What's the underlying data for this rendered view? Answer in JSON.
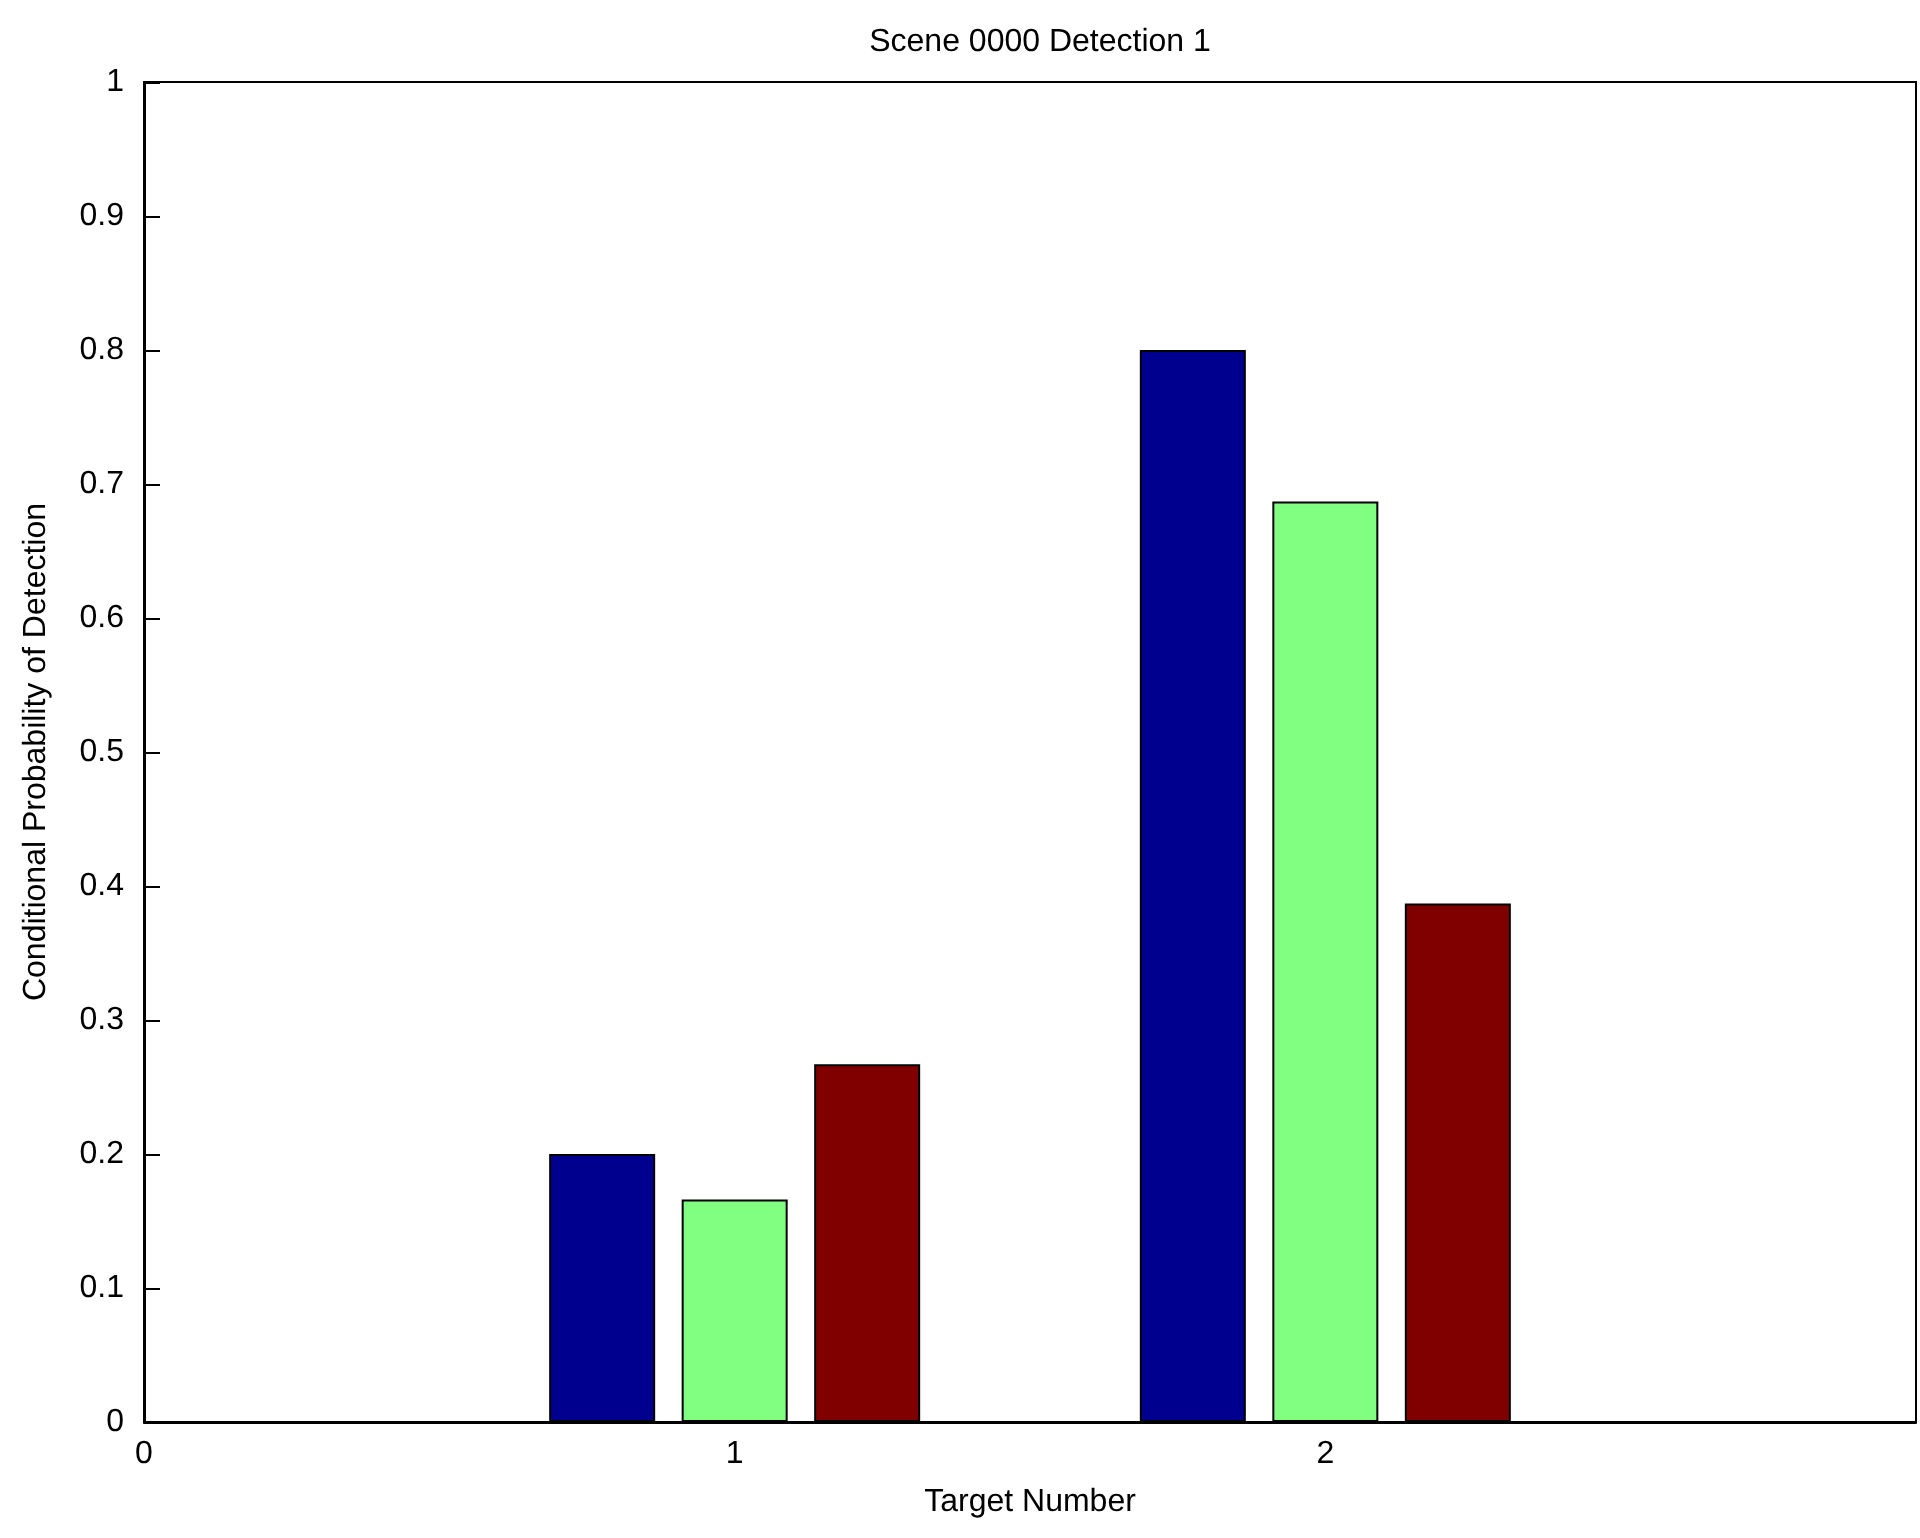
{
  "chart_data": {
    "type": "bar",
    "title": "Scene 0000 Detection 1",
    "xlabel": "Target Number",
    "ylabel": "Conditional Probability of Detection",
    "x": [
      1,
      2
    ],
    "series": [
      {
        "color": "#00008f",
        "values": [
          0.2,
          0.8
        ]
      },
      {
        "color": "#80ff80",
        "values": [
          0.166,
          0.687
        ]
      },
      {
        "color": "#800000",
        "values": [
          0.267,
          0.387
        ]
      }
    ],
    "xlim": [
      0,
      3
    ],
    "xticks": [
      0,
      1,
      2
    ],
    "ylim": [
      0,
      1
    ],
    "yticks": [
      0,
      0.1,
      0.2,
      0.3,
      0.4,
      0.5,
      0.6,
      0.7,
      0.8,
      0.9,
      1
    ],
    "grid": false
  }
}
